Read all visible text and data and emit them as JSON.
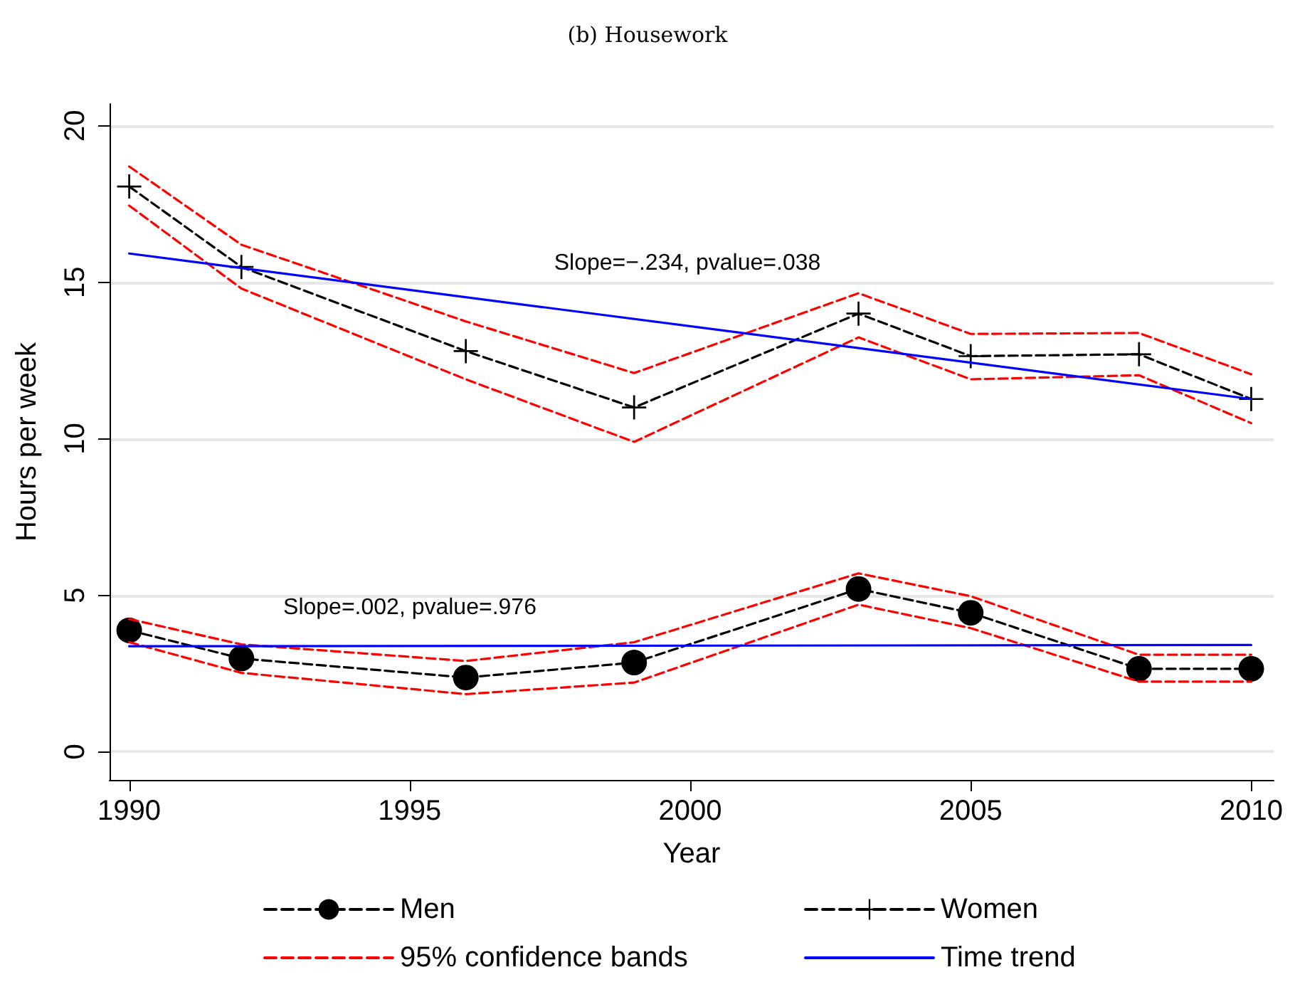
{
  "chart_data": {
    "type": "line",
    "title": "(b) Housework",
    "xlabel": "Year",
    "ylabel": "Hours per week",
    "xlim": [
      1989.65,
      2010.4
    ],
    "ylim": [
      -0.9,
      20.7
    ],
    "xticks": [
      1990,
      1995,
      2000,
      2005,
      2010
    ],
    "yticks": [
      0,
      5,
      10,
      15,
      20
    ],
    "grid": "y",
    "legend": "bottom",
    "annotations": [
      "Slope=−.234, pvalue=.038",
      "Slope=.002, pvalue=.976"
    ],
    "series": [
      {
        "name": "Men",
        "color": "#000000",
        "marker": "circle",
        "line_style": "dashed",
        "x": [
          1990,
          1992,
          1996,
          1999,
          2003,
          2005,
          2008,
          2010
        ],
        "values": [
          3.88,
          2.98,
          2.37,
          2.85,
          5.2,
          4.44,
          2.65,
          2.65
        ]
      },
      {
        "name": "Women",
        "color": "#000000",
        "marker": "cross",
        "line_style": "dashed",
        "x": [
          1990,
          1992,
          1996,
          1999,
          2003,
          2005,
          2008,
          2010
        ],
        "values": [
          18.06,
          15.49,
          12.8,
          11.0,
          14.0,
          12.64,
          12.7,
          11.27
        ]
      },
      {
        "name": "95% confidence bands",
        "color": "#ff0000",
        "marker": "none",
        "line_style": "dashed",
        "x": [
          1990,
          1992,
          1996,
          1999,
          2003,
          2005,
          2008,
          2010
        ],
        "values": [
          4.24,
          3.43,
          2.9,
          3.5,
          5.7,
          4.97,
          3.1,
          3.1
        ]
      },
      {
        "color": "#ff0000",
        "marker": "none",
        "line_style": "dashed",
        "x": [
          1990,
          1992,
          1996,
          1999,
          2003,
          2005,
          2008,
          2010
        ],
        "values": [
          3.5,
          2.52,
          1.84,
          2.21,
          4.7,
          3.95,
          2.24,
          2.24
        ]
      },
      {
        "color": "#ff0000",
        "marker": "none",
        "line_style": "dashed",
        "x": [
          1990,
          1992,
          1996,
          1999,
          2003,
          2005,
          2008,
          2010
        ],
        "values": [
          18.7,
          16.2,
          13.75,
          12.1,
          14.65,
          13.35,
          13.38,
          12.06
        ]
      },
      {
        "color": "#ff0000",
        "marker": "none",
        "line_style": "dashed",
        "x": [
          1990,
          1992,
          1996,
          1999,
          2003,
          2005,
          2008,
          2010
        ],
        "values": [
          17.45,
          14.8,
          11.9,
          9.9,
          13.24,
          11.9,
          12.03,
          10.5
        ]
      },
      {
        "name": "Time trend",
        "color": "#0000ff",
        "marker": "none",
        "line_style": "solid",
        "x": [
          1990,
          2010
        ],
        "values": [
          15.92,
          11.27
        ]
      },
      {
        "color": "#0000ff",
        "marker": "none",
        "line_style": "solid",
        "x": [
          1990,
          2010
        ],
        "values": [
          3.37,
          3.41
        ]
      }
    ]
  }
}
